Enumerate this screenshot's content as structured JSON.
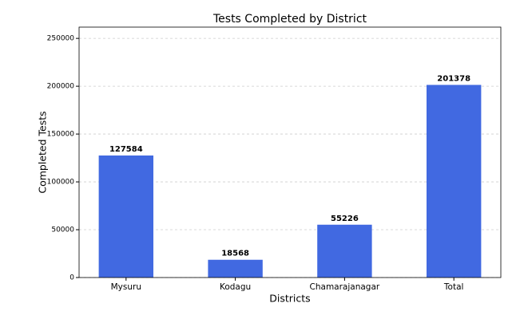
{
  "chart_data": {
    "type": "bar",
    "title": "Tests Completed by District",
    "x_label": "Districts",
    "y_label": "Completed Tests",
    "categories": [
      "Mysuru",
      "Kodagu",
      "Chamarajanagar",
      "Total"
    ],
    "values": [
      127584,
      18568,
      55226,
      201378
    ],
    "color": "#4169e1",
    "ylim": [
      0,
      261791
    ],
    "yticks": [
      0,
      50000,
      100000,
      150000,
      200000,
      250000
    ],
    "grid": true
  }
}
